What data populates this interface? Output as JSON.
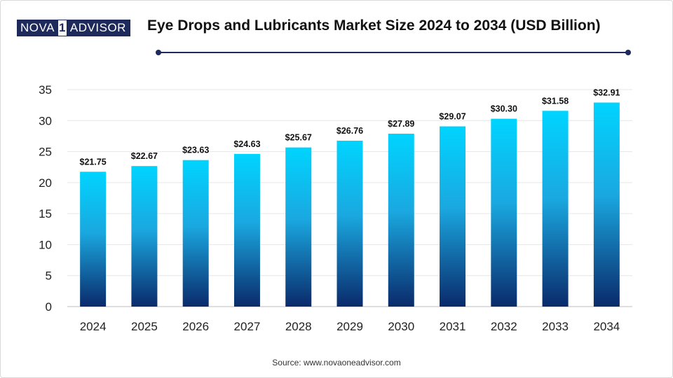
{
  "logo": {
    "left": "NOVA",
    "middle": "1",
    "right": "ADVISOR"
  },
  "header": {
    "title": "Eye Drops and Lubricants Market Size 2024 to 2034 (USD Billion)"
  },
  "footer": {
    "source": "Source: www.novaoneadvisor.com"
  },
  "colors": {
    "bar_top": "#00d4ff",
    "bar_bottom": "#0a2a6b",
    "grid": "#e6e6e6",
    "axis_text": "#222222",
    "rule": "#1f2a5c"
  },
  "chart_data": {
    "type": "bar",
    "title": "Eye Drops and Lubricants Market Size 2024 to 2034 (USD Billion)",
    "xlabel": "",
    "ylabel": "",
    "categories": [
      "2024",
      "2025",
      "2026",
      "2027",
      "2028",
      "2029",
      "2030",
      "2031",
      "2032",
      "2033",
      "2034"
    ],
    "values": [
      21.75,
      22.67,
      23.63,
      24.63,
      25.67,
      26.76,
      27.89,
      29.07,
      30.3,
      31.58,
      32.91
    ],
    "data_labels": [
      "$21.75",
      "$22.67",
      "$23.63",
      "$24.63",
      "$25.67",
      "$26.76",
      "$27.89",
      "$29.07",
      "$30.30",
      "$31.58",
      "$32.91"
    ],
    "ylim": [
      0,
      35
    ],
    "yticks": [
      0,
      5,
      10,
      15,
      20,
      25,
      30,
      35
    ],
    "grid": true
  }
}
